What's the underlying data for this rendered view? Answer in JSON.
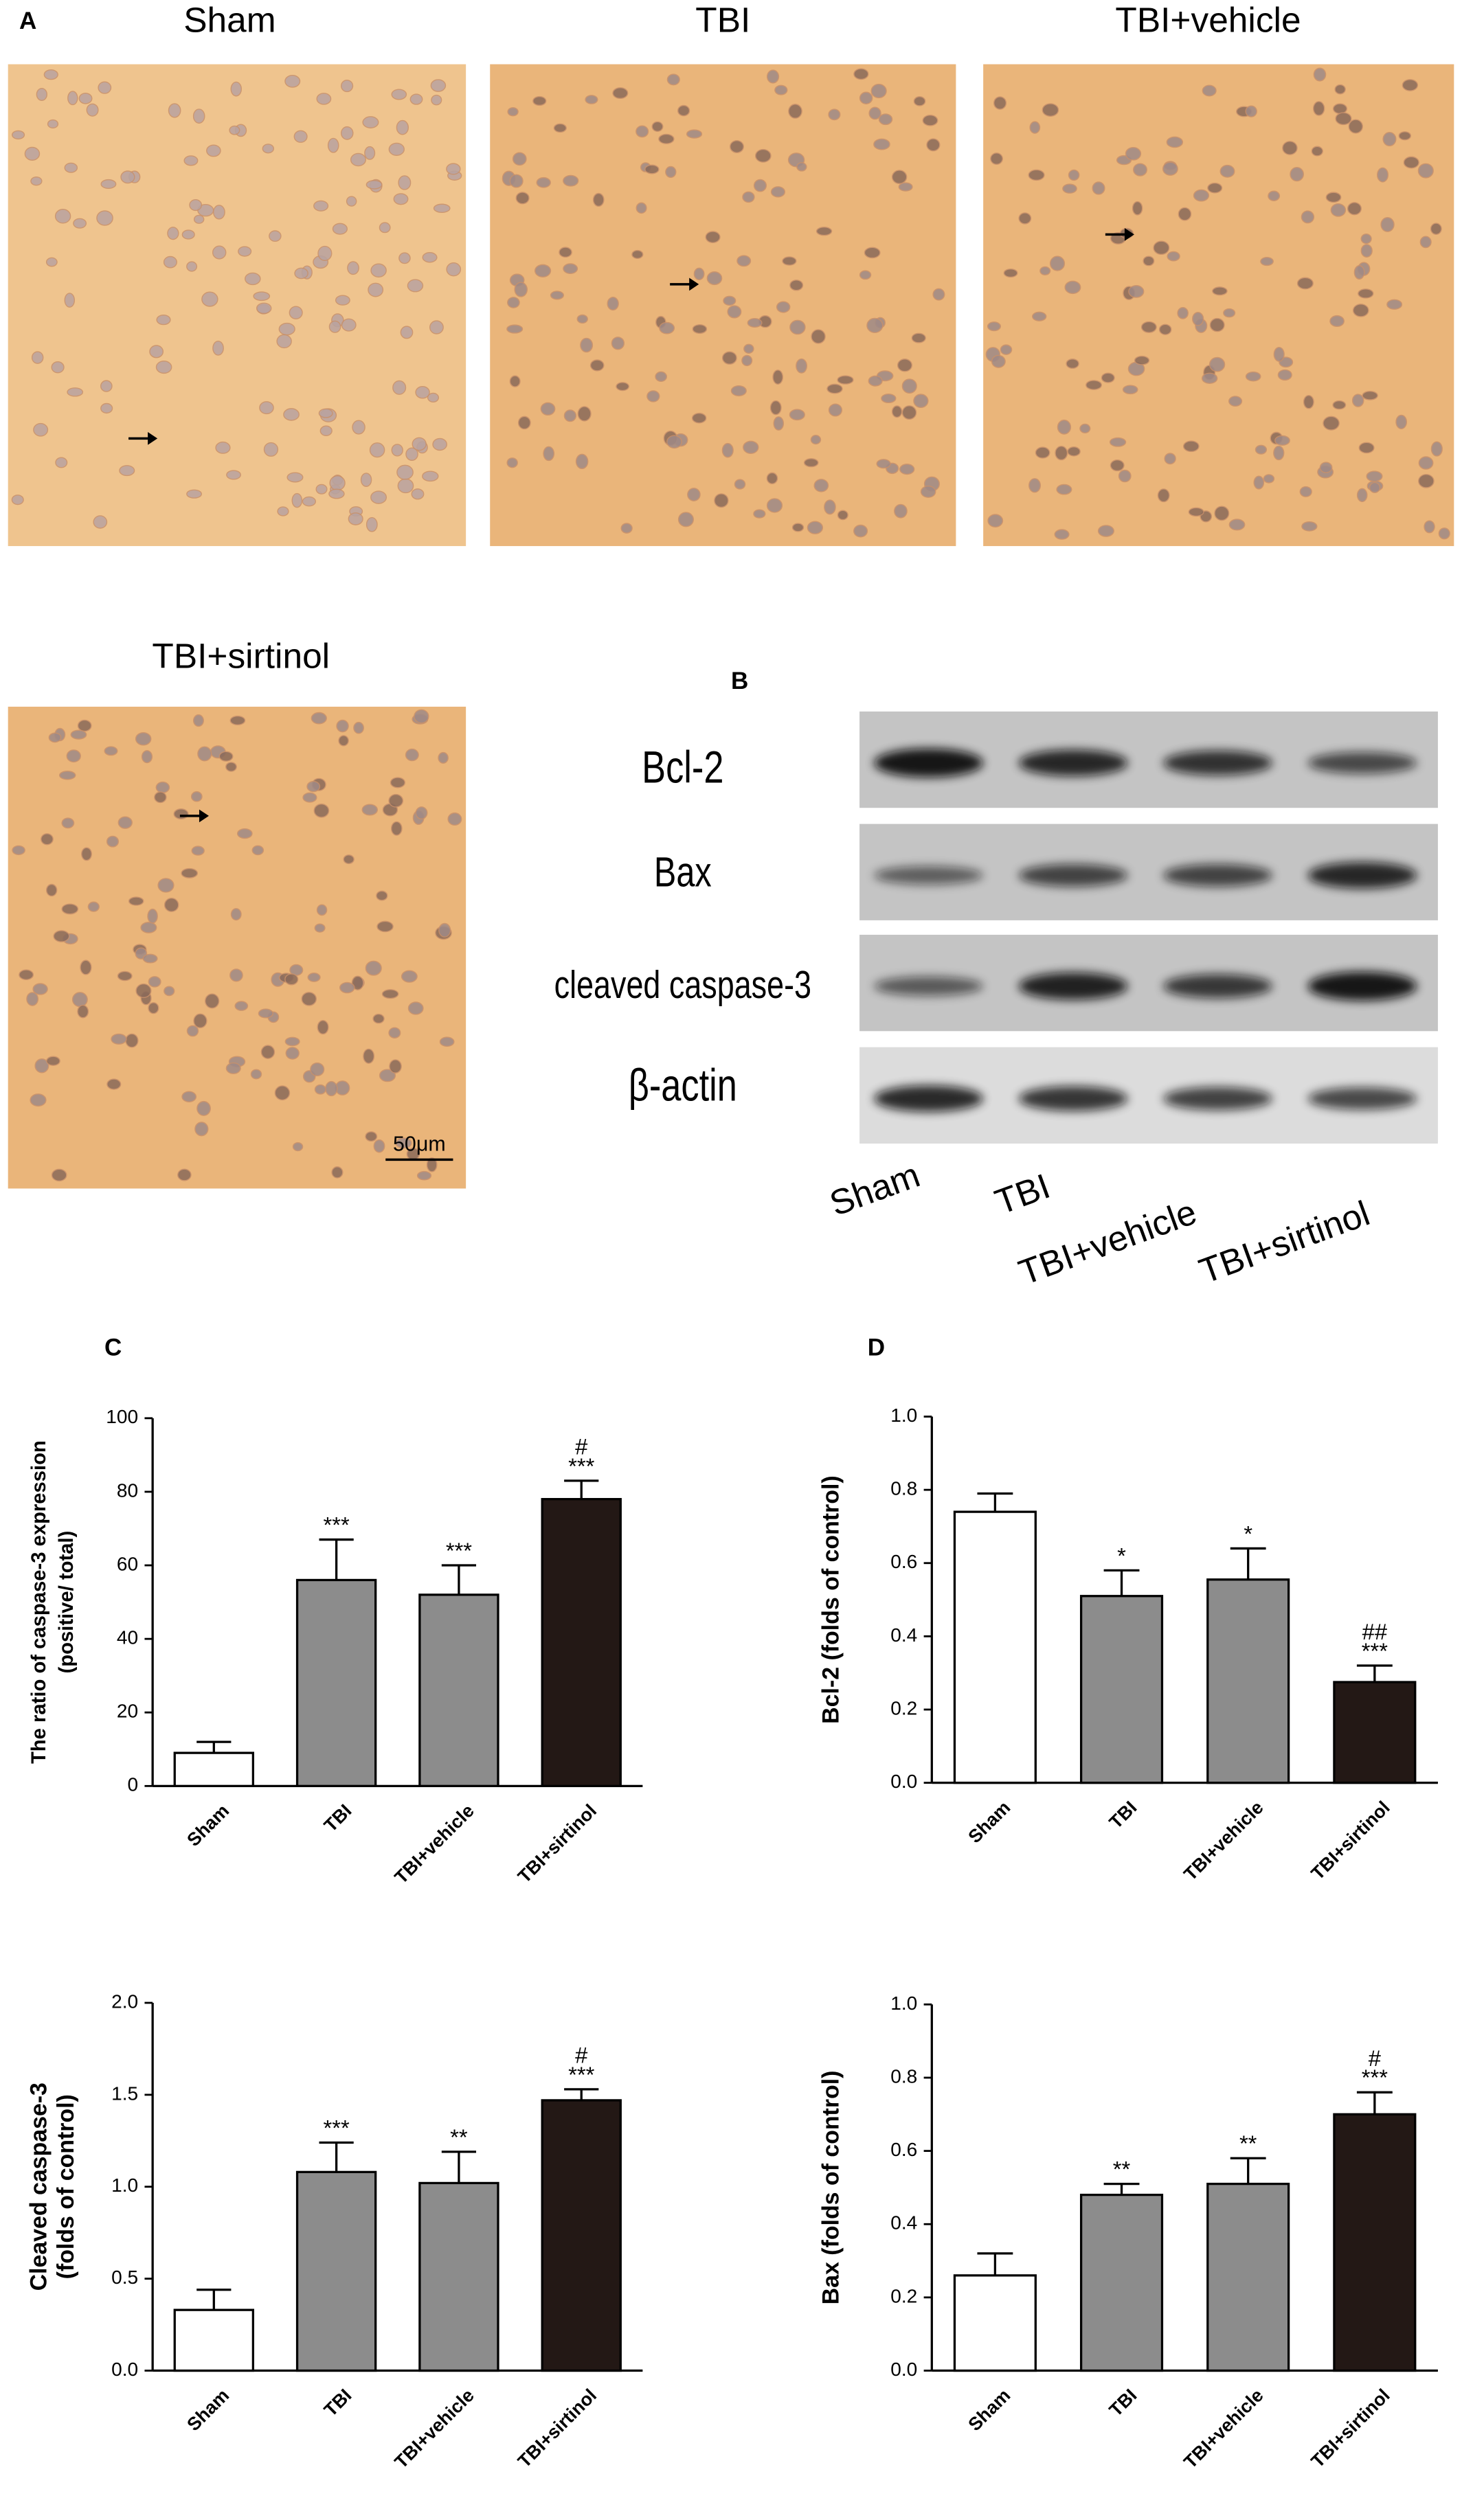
{
  "panel_a": {
    "label": "A",
    "images": [
      "Sham",
      "TBI",
      "TBI+vehicle",
      "TBI+sirtinol"
    ],
    "scale_bar": "50μm"
  },
  "panel_b": {
    "label": "B",
    "rows": [
      "Bcl-2",
      "Bax",
      "cleaved caspase-3",
      "β-actin"
    ],
    "lanes": [
      "Sham",
      "TBI",
      "TBI+vehicle",
      "TBI+sirtinol"
    ]
  },
  "chart_data": [
    {
      "type": "bar",
      "panel_label": "C",
      "ylabel": [
        "The ratio of caspase-3 expression",
        "(positive/ total)"
      ],
      "categories": [
        "Sham",
        "TBI",
        "TBI+vehicle",
        "TBI+sirtinol"
      ],
      "values": [
        9,
        56,
        52,
        78
      ],
      "errors": [
        3,
        11,
        8,
        5
      ],
      "colors": [
        "#ffffff",
        "#8c8c8c",
        "#8c8c8c",
        "#231815"
      ],
      "annotations": [
        null,
        [
          "***"
        ],
        [
          "***"
        ],
        [
          "#",
          "***"
        ]
      ],
      "ylim": [
        0,
        100
      ],
      "yticks": [
        0,
        20,
        40,
        60,
        80,
        100
      ]
    },
    {
      "type": "bar",
      "panel_label": "D",
      "ylabel": [
        "Bcl-2  (folds of control)"
      ],
      "categories": [
        "Sham",
        "TBI",
        "TBI+vehicle",
        "TBI+sirtinol"
      ],
      "values": [
        0.74,
        0.51,
        0.555,
        0.275
      ],
      "errors": [
        0.05,
        0.07,
        0.085,
        0.045
      ],
      "colors": [
        "#ffffff",
        "#8c8c8c",
        "#8c8c8c",
        "#231815"
      ],
      "annotations": [
        null,
        [
          "*"
        ],
        [
          "*"
        ],
        [
          "##",
          "***"
        ]
      ],
      "ylim": [
        0,
        1
      ],
      "yticks": [
        {
          "value": 0,
          "label": "0.0"
        },
        0.2,
        0.4,
        0.6,
        0.8,
        {
          "value": 1,
          "label": "1.0"
        }
      ]
    },
    {
      "type": "bar",
      "ylabel": [
        "Cleaved caspase-3",
        "(folds of control)"
      ],
      "categories": [
        "Sham",
        "TBI",
        "TBI+vehicle",
        "TBI+sirtinol"
      ],
      "values": [
        0.33,
        1.08,
        1.02,
        1.47
      ],
      "errors": [
        0.11,
        0.16,
        0.17,
        0.06
      ],
      "colors": [
        "#ffffff",
        "#8c8c8c",
        "#8c8c8c",
        "#231815"
      ],
      "annotations": [
        null,
        [
          "***"
        ],
        [
          "**"
        ],
        [
          "#",
          "***"
        ]
      ],
      "ylim": [
        0,
        2
      ],
      "yticks": [
        {
          "value": 0,
          "label": "0.0"
        },
        0.5,
        {
          "value": 1,
          "label": "1.0"
        },
        1.5,
        {
          "value": 2,
          "label": "2.0"
        }
      ]
    },
    {
      "type": "bar",
      "ylabel": [
        "Bax (folds of control)"
      ],
      "categories": [
        "Sham",
        "TBI",
        "TBI+vehicle",
        "TBI+sirtinol"
      ],
      "values": [
        0.26,
        0.48,
        0.51,
        0.7
      ],
      "errors": [
        0.06,
        0.03,
        0.07,
        0.06
      ],
      "colors": [
        "#ffffff",
        "#8c8c8c",
        "#8c8c8c",
        "#231815"
      ],
      "annotations": [
        null,
        [
          "**"
        ],
        [
          "**"
        ],
        [
          "#",
          "***"
        ]
      ],
      "ylim": [
        0,
        1
      ],
      "yticks": [
        {
          "value": 0,
          "label": "0.0"
        },
        0.2,
        0.4,
        0.6,
        0.8,
        {
          "value": 1,
          "label": "1.0"
        }
      ]
    }
  ]
}
